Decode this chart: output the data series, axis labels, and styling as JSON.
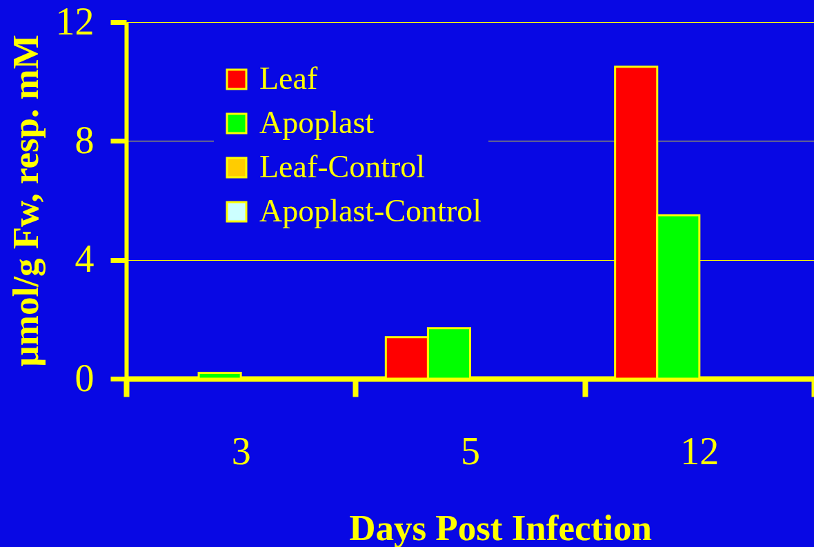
{
  "chart_data": {
    "type": "bar",
    "xlabel": "Days Post Infection",
    "ylabel": "µmol/g Fw, resp. mM",
    "categories": [
      "3",
      "5",
      "12"
    ],
    "series": [
      {
        "name": "Leaf",
        "color": "#ff0000",
        "values": [
          null,
          1.4,
          10.5
        ]
      },
      {
        "name": "Apoplast",
        "color": "#00ff00",
        "values": [
          0.2,
          1.7,
          5.5
        ]
      },
      {
        "name": "Leaf-Control",
        "color": "#ffcc00",
        "values": [
          null,
          null,
          null
        ]
      },
      {
        "name": "Apoplast-Control",
        "color": "#ccffff",
        "values": [
          null,
          null,
          null
        ]
      }
    ],
    "ylim": [
      0,
      12
    ],
    "yticks": [
      0,
      4,
      8,
      12
    ],
    "grid": "y",
    "legend": "top left"
  }
}
